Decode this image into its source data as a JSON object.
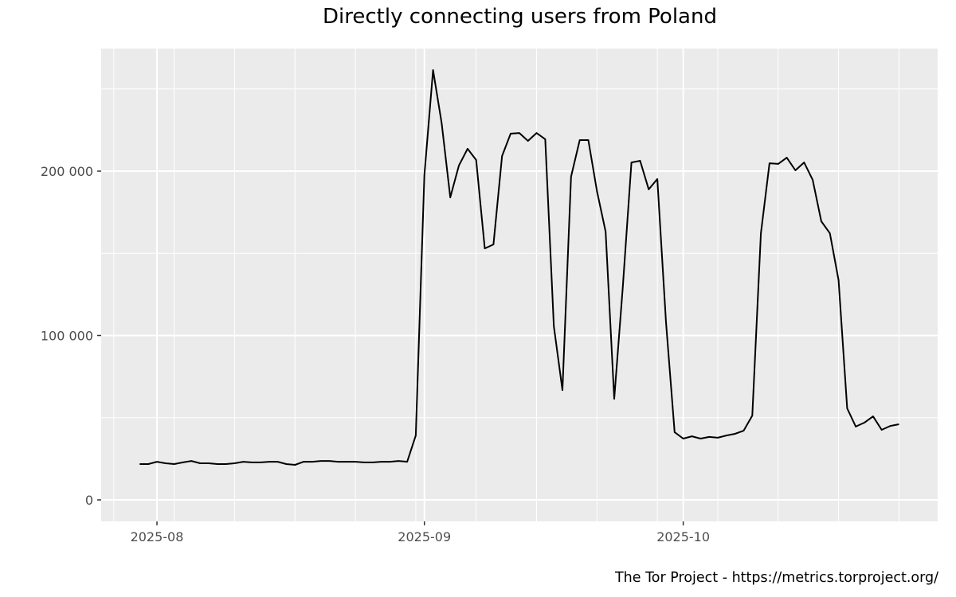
{
  "title": "Directly connecting users from Poland",
  "caption": "The Tor Project - https://metrics.torproject.org/",
  "chart_data": {
    "type": "line",
    "title": "Directly connecting users from Poland",
    "xlabel": "",
    "ylabel": "",
    "x_tick_labels": [
      "2025-08",
      "2025-09",
      "2025-10"
    ],
    "y_tick_labels": [
      "0",
      "100 000",
      "200 000"
    ],
    "ylim": [
      -12000,
      275000
    ],
    "xlim": [
      "2025-07-25",
      "2025-10-30"
    ],
    "grid": true,
    "legend": null,
    "line_color": "#000000",
    "panel_background": "#ebebeb",
    "series": [
      {
        "name": "Users",
        "x": [
          "2025-07-30",
          "2025-07-31",
          "2025-08-01",
          "2025-08-02",
          "2025-08-03",
          "2025-08-04",
          "2025-08-05",
          "2025-08-06",
          "2025-08-07",
          "2025-08-08",
          "2025-08-09",
          "2025-08-10",
          "2025-08-11",
          "2025-08-12",
          "2025-08-13",
          "2025-08-14",
          "2025-08-15",
          "2025-08-16",
          "2025-08-17",
          "2025-08-18",
          "2025-08-19",
          "2025-08-20",
          "2025-08-21",
          "2025-08-22",
          "2025-08-23",
          "2025-08-24",
          "2025-08-25",
          "2025-08-26",
          "2025-08-27",
          "2025-08-28",
          "2025-08-29",
          "2025-08-30",
          "2025-08-31",
          "2025-09-01",
          "2025-09-02",
          "2025-09-03",
          "2025-09-04",
          "2025-09-05",
          "2025-09-06",
          "2025-09-07",
          "2025-09-08",
          "2025-09-09",
          "2025-09-10",
          "2025-09-11",
          "2025-09-12",
          "2025-09-13",
          "2025-09-14",
          "2025-09-15",
          "2025-09-16",
          "2025-09-17",
          "2025-09-18",
          "2025-09-19",
          "2025-09-20",
          "2025-09-21",
          "2025-09-22",
          "2025-09-23",
          "2025-09-24",
          "2025-09-25",
          "2025-09-26",
          "2025-09-27",
          "2025-09-28",
          "2025-09-29",
          "2025-09-30",
          "2025-10-01",
          "2025-10-02",
          "2025-10-03",
          "2025-10-04",
          "2025-10-05",
          "2025-10-06",
          "2025-10-07",
          "2025-10-08",
          "2025-10-09",
          "2025-10-10",
          "2025-10-11",
          "2025-10-12",
          "2025-10-13",
          "2025-10-14",
          "2025-10-15",
          "2025-10-16",
          "2025-10-17",
          "2025-10-18",
          "2025-10-19",
          "2025-10-20",
          "2025-10-21",
          "2025-10-22",
          "2025-10-23",
          "2025-10-24",
          "2025-10-25",
          "2025-10-26"
        ],
        "values": [
          21800,
          21800,
          23200,
          22300,
          21800,
          22800,
          23700,
          22300,
          22300,
          21800,
          21800,
          22300,
          23200,
          22800,
          22800,
          23200,
          23200,
          21800,
          21300,
          23200,
          23200,
          23700,
          23700,
          23200,
          23200,
          23200,
          22800,
          22800,
          23200,
          23200,
          23700,
          23200,
          39200,
          197600,
          261500,
          229100,
          184000,
          203400,
          213600,
          206800,
          153000,
          155400,
          209200,
          222800,
          223200,
          218400,
          223200,
          219400,
          105600,
          66800,
          196600,
          218900,
          218900,
          187900,
          163200,
          61500,
          129800,
          205300,
          206300,
          188900,
          195200,
          108000,
          41200,
          37300,
          38700,
          37300,
          38300,
          37800,
          39200,
          40200,
          42100,
          51300,
          162200,
          204800,
          204400,
          208200,
          200500,
          205300,
          194700,
          169500,
          162200,
          133700,
          55700,
          44600,
          47000,
          50800,
          42600,
          45000,
          46000
        ]
      }
    ]
  }
}
